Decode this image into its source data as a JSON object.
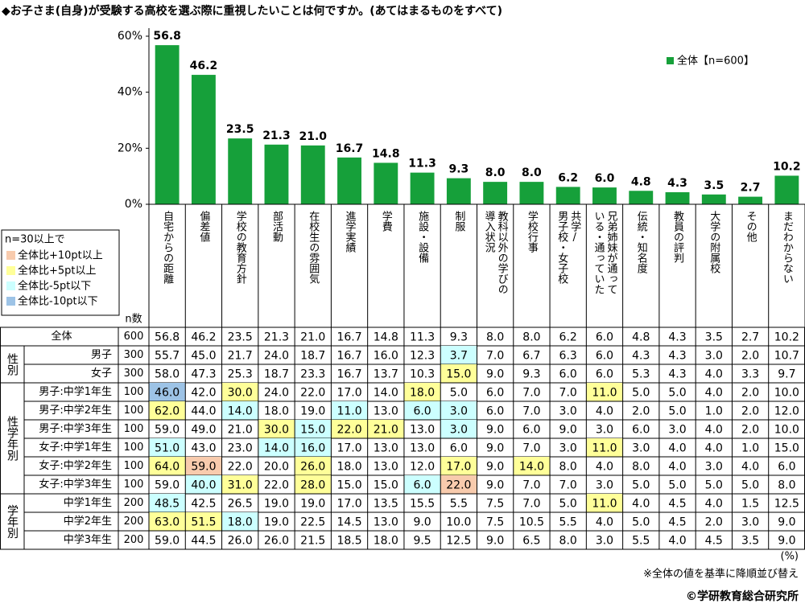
{
  "title": "◆お子さま(自身)が受験する高校を選ぶ際に重視したいことは何ですか。(あてはまるものをすべて)",
  "chart_data": {
    "type": "bar",
    "categories": [
      [
        "自宅からの距離"
      ],
      [
        "偏差値"
      ],
      [
        "学校の教育方針"
      ],
      [
        "部活動"
      ],
      [
        "在校生の雰囲気"
      ],
      [
        "進学実績"
      ],
      [
        "学費"
      ],
      [
        "施設・設備"
      ],
      [
        "制服"
      ],
      [
        "教科以外の学びの",
        "導入状況"
      ],
      [
        "学校行事"
      ],
      [
        "共学/",
        "男子校・女子校"
      ],
      [
        "兄弟姉妹が通って",
        "いる・通っていた"
      ],
      [
        "伝統・知名度"
      ],
      [
        "教員の評判"
      ],
      [
        "大学の附属校"
      ],
      [
        "その他"
      ],
      [
        "まだわからない"
      ]
    ],
    "series": [
      {
        "name": "全体【n=600】",
        "color": "#16a03a",
        "values": [
          56.8,
          46.2,
          23.5,
          21.3,
          21.0,
          16.7,
          14.8,
          11.3,
          9.3,
          8.0,
          8.0,
          6.2,
          6.0,
          4.8,
          4.3,
          3.5,
          2.7,
          10.2
        ],
        "value_labels": [
          "56.8",
          "46.2",
          "23.5",
          "21.3",
          "21.0",
          "16.7",
          "14.8",
          "11.3",
          "9.3",
          "8.0",
          "8.0",
          "6.2",
          "6.0",
          "4.8",
          "4.3",
          "3.5",
          "2.7",
          "10.2"
        ]
      }
    ],
    "ylim": [
      0,
      60
    ],
    "yticks": [
      {
        "value": 0,
        "label": "0%"
      },
      {
        "value": 20,
        "label": "20%"
      },
      {
        "value": 40,
        "label": "40%"
      },
      {
        "value": 60,
        "label": "60%"
      }
    ],
    "legend": "top-right",
    "grid": false
  },
  "table": {
    "legend_title": "n=30以上で",
    "legend": [
      {
        "label": "全体比+10pt以上",
        "color": "#f8cbad"
      },
      {
        "label": "全体比+5pt以上",
        "color": "#ffff99"
      },
      {
        "label": "全体比-5pt以下",
        "color": "#ccffff"
      },
      {
        "label": "全体比-10pt以下",
        "color": "#9dc3e6"
      }
    ],
    "n_header": "n数",
    "total": {
      "label": "全体",
      "n": 600,
      "values": [
        "56.8",
        "46.2",
        "23.5",
        "21.3",
        "21.0",
        "16.7",
        "14.8",
        "11.3",
        "9.3",
        "8.0",
        "8.0",
        "6.2",
        "6.0",
        "4.8",
        "4.3",
        "3.5",
        "2.7",
        "10.2"
      ]
    },
    "groups": [
      {
        "label": "性別",
        "rows": [
          {
            "label": "男子",
            "n": 300,
            "values": [
              "55.7",
              "45.0",
              "21.7",
              "24.0",
              "18.7",
              "16.7",
              "16.0",
              "12.3",
              "3.7",
              "7.0",
              "6.7",
              "6.3",
              "6.0",
              "4.3",
              "4.3",
              "3.0",
              "2.0",
              "10.7"
            ],
            "cell_colors": [
              null,
              null,
              null,
              null,
              null,
              null,
              null,
              null,
              "#ccffff",
              null,
              null,
              null,
              null,
              null,
              null,
              null,
              null,
              null
            ]
          },
          {
            "label": "女子",
            "n": 300,
            "values": [
              "58.0",
              "47.3",
              "25.3",
              "18.7",
              "23.3",
              "16.7",
              "13.7",
              "10.3",
              "15.0",
              "9.0",
              "9.3",
              "6.0",
              "6.0",
              "5.3",
              "4.3",
              "4.0",
              "3.3",
              "9.7"
            ],
            "cell_colors": [
              null,
              null,
              null,
              null,
              null,
              null,
              null,
              null,
              "#ffff99",
              null,
              null,
              null,
              null,
              null,
              null,
              null,
              null,
              null
            ]
          }
        ]
      },
      {
        "label": "性学年別",
        "rows": [
          {
            "label": "男子:中学1年生",
            "n": 100,
            "values": [
              "46.0",
              "42.0",
              "30.0",
              "24.0",
              "22.0",
              "17.0",
              "14.0",
              "18.0",
              "5.0",
              "6.0",
              "7.0",
              "7.0",
              "11.0",
              "5.0",
              "5.0",
              "4.0",
              "2.0",
              "10.0"
            ],
            "cell_colors": [
              "#9dc3e6",
              null,
              "#ffff99",
              null,
              null,
              null,
              null,
              "#ffff99",
              null,
              null,
              null,
              null,
              "#ffff99",
              null,
              null,
              null,
              null,
              null
            ]
          },
          {
            "label": "男子:中学2年生",
            "n": 100,
            "values": [
              "62.0",
              "44.0",
              "14.0",
              "18.0",
              "19.0",
              "11.0",
              "13.0",
              "6.0",
              "3.0",
              "6.0",
              "7.0",
              "3.0",
              "4.0",
              "2.0",
              "5.0",
              "1.0",
              "2.0",
              "12.0"
            ],
            "cell_colors": [
              "#ffff99",
              null,
              "#ccffff",
              null,
              null,
              "#ccffff",
              null,
              "#ccffff",
              "#ccffff",
              null,
              null,
              null,
              null,
              null,
              null,
              null,
              null,
              null
            ]
          },
          {
            "label": "男子:中学3年生",
            "n": 100,
            "values": [
              "59.0",
              "49.0",
              "21.0",
              "30.0",
              "15.0",
              "22.0",
              "21.0",
              "13.0",
              "3.0",
              "9.0",
              "6.0",
              "9.0",
              "3.0",
              "6.0",
              "3.0",
              "4.0",
              "2.0",
              "10.0"
            ],
            "cell_colors": [
              null,
              null,
              null,
              "#ffff99",
              "#ccffff",
              "#ffff99",
              "#ffff99",
              null,
              "#ccffff",
              null,
              null,
              null,
              null,
              null,
              null,
              null,
              null,
              null
            ]
          },
          {
            "label": "女子:中学1年生",
            "n": 100,
            "values": [
              "51.0",
              "43.0",
              "23.0",
              "14.0",
              "16.0",
              "17.0",
              "13.0",
              "13.0",
              "6.0",
              "9.0",
              "7.0",
              "3.0",
              "11.0",
              "3.0",
              "4.0",
              "4.0",
              "1.0",
              "15.0"
            ],
            "cell_colors": [
              "#ccffff",
              null,
              null,
              "#ccffff",
              "#ccffff",
              null,
              null,
              null,
              null,
              null,
              null,
              null,
              "#ffff99",
              null,
              null,
              null,
              null,
              null
            ]
          },
          {
            "label": "女子:中学2年生",
            "n": 100,
            "values": [
              "64.0",
              "59.0",
              "22.0",
              "20.0",
              "26.0",
              "18.0",
              "13.0",
              "12.0",
              "17.0",
              "9.0",
              "14.0",
              "8.0",
              "4.0",
              "8.0",
              "4.0",
              "3.0",
              "4.0",
              "6.0"
            ],
            "cell_colors": [
              "#ffff99",
              "#f8cbad",
              null,
              null,
              "#ffff99",
              null,
              null,
              null,
              "#ffff99",
              null,
              "#ffff99",
              null,
              null,
              null,
              null,
              null,
              null,
              null
            ]
          },
          {
            "label": "女子:中学3年生",
            "n": 100,
            "values": [
              "59.0",
              "40.0",
              "31.0",
              "22.0",
              "28.0",
              "15.0",
              "15.0",
              "6.0",
              "22.0",
              "9.0",
              "7.0",
              "7.0",
              "3.0",
              "5.0",
              "5.0",
              "5.0",
              "5.0",
              "8.0"
            ],
            "cell_colors": [
              null,
              "#ccffff",
              "#ffff99",
              null,
              "#ffff99",
              null,
              null,
              "#ccffff",
              "#f8cbad",
              null,
              null,
              null,
              null,
              null,
              null,
              null,
              null,
              null
            ]
          }
        ]
      },
      {
        "label": "学年別",
        "rows": [
          {
            "label": "中学1年生",
            "n": 200,
            "values": [
              "48.5",
              "42.5",
              "26.5",
              "19.0",
              "19.0",
              "17.0",
              "13.5",
              "15.5",
              "5.5",
              "7.5",
              "7.0",
              "5.0",
              "11.0",
              "4.0",
              "4.5",
              "4.0",
              "1.5",
              "12.5"
            ],
            "cell_colors": [
              "#ccffff",
              null,
              null,
              null,
              null,
              null,
              null,
              null,
              null,
              null,
              null,
              null,
              "#ffff99",
              null,
              null,
              null,
              null,
              null
            ]
          },
          {
            "label": "中学2年生",
            "n": 200,
            "values": [
              "63.0",
              "51.5",
              "18.0",
              "19.0",
              "22.5",
              "14.5",
              "13.0",
              "9.0",
              "10.0",
              "7.5",
              "10.5",
              "5.5",
              "4.0",
              "5.0",
              "4.5",
              "2.0",
              "3.0",
              "9.0"
            ],
            "cell_colors": [
              "#ffff99",
              "#ffff99",
              "#ccffff",
              null,
              null,
              null,
              null,
              null,
              null,
              null,
              null,
              null,
              null,
              null,
              null,
              null,
              null,
              null
            ]
          },
          {
            "label": "中学3年生",
            "n": 200,
            "values": [
              "59.0",
              "44.5",
              "26.0",
              "26.0",
              "21.5",
              "18.5",
              "18.0",
              "9.5",
              "12.5",
              "9.0",
              "6.5",
              "8.0",
              "3.0",
              "5.5",
              "4.0",
              "4.5",
              "3.5",
              "9.0"
            ],
            "cell_colors": [
              null,
              null,
              null,
              null,
              null,
              null,
              null,
              null,
              null,
              null,
              null,
              null,
              null,
              null,
              null,
              null,
              null,
              null
            ]
          }
        ]
      }
    ],
    "unit": "(%)",
    "note": "※全体の値を基準に降順並び替え",
    "credit": "©学研教育総合研究所"
  }
}
